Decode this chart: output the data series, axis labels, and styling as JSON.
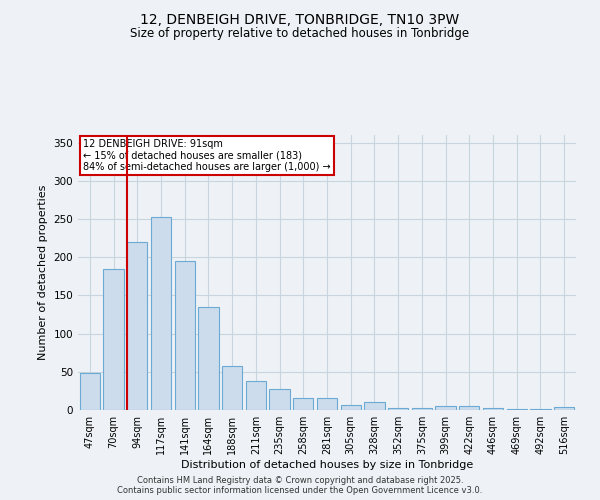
{
  "title": "12, DENBEIGH DRIVE, TONBRIDGE, TN10 3PW",
  "subtitle": "Size of property relative to detached houses in Tonbridge",
  "xlabel": "Distribution of detached houses by size in Tonbridge",
  "ylabel": "Number of detached properties",
  "bar_labels": [
    "47sqm",
    "70sqm",
    "94sqm",
    "117sqm",
    "141sqm",
    "164sqm",
    "188sqm",
    "211sqm",
    "235sqm",
    "258sqm",
    "281sqm",
    "305sqm",
    "328sqm",
    "352sqm",
    "375sqm",
    "399sqm",
    "422sqm",
    "446sqm",
    "469sqm",
    "492sqm",
    "516sqm"
  ],
  "bar_values": [
    48,
    184,
    220,
    253,
    195,
    135,
    57,
    38,
    27,
    16,
    16,
    7,
    10,
    3,
    3,
    5,
    5,
    2,
    1,
    1,
    4
  ],
  "bar_color": "#ccdcec",
  "bar_edge_color": "#6aaad4",
  "grid_color": "#c8d4de",
  "background_color": "#eef2f6",
  "vline_color": "#cc0000",
  "vline_x_index": 1.575,
  "annotation_text": "12 DENBEIGH DRIVE: 91sqm\n← 15% of detached houses are smaller (183)\n84% of semi-detached houses are larger (1,000) →",
  "annotation_box_color": "#ffffff",
  "annotation_box_edge": "#cc0000",
  "ylim": [
    0,
    360
  ],
  "yticks": [
    0,
    50,
    100,
    150,
    200,
    250,
    300,
    350
  ],
  "footer": "Contains HM Land Registry data © Crown copyright and database right 2025.\nContains public sector information licensed under the Open Government Licence v3.0."
}
